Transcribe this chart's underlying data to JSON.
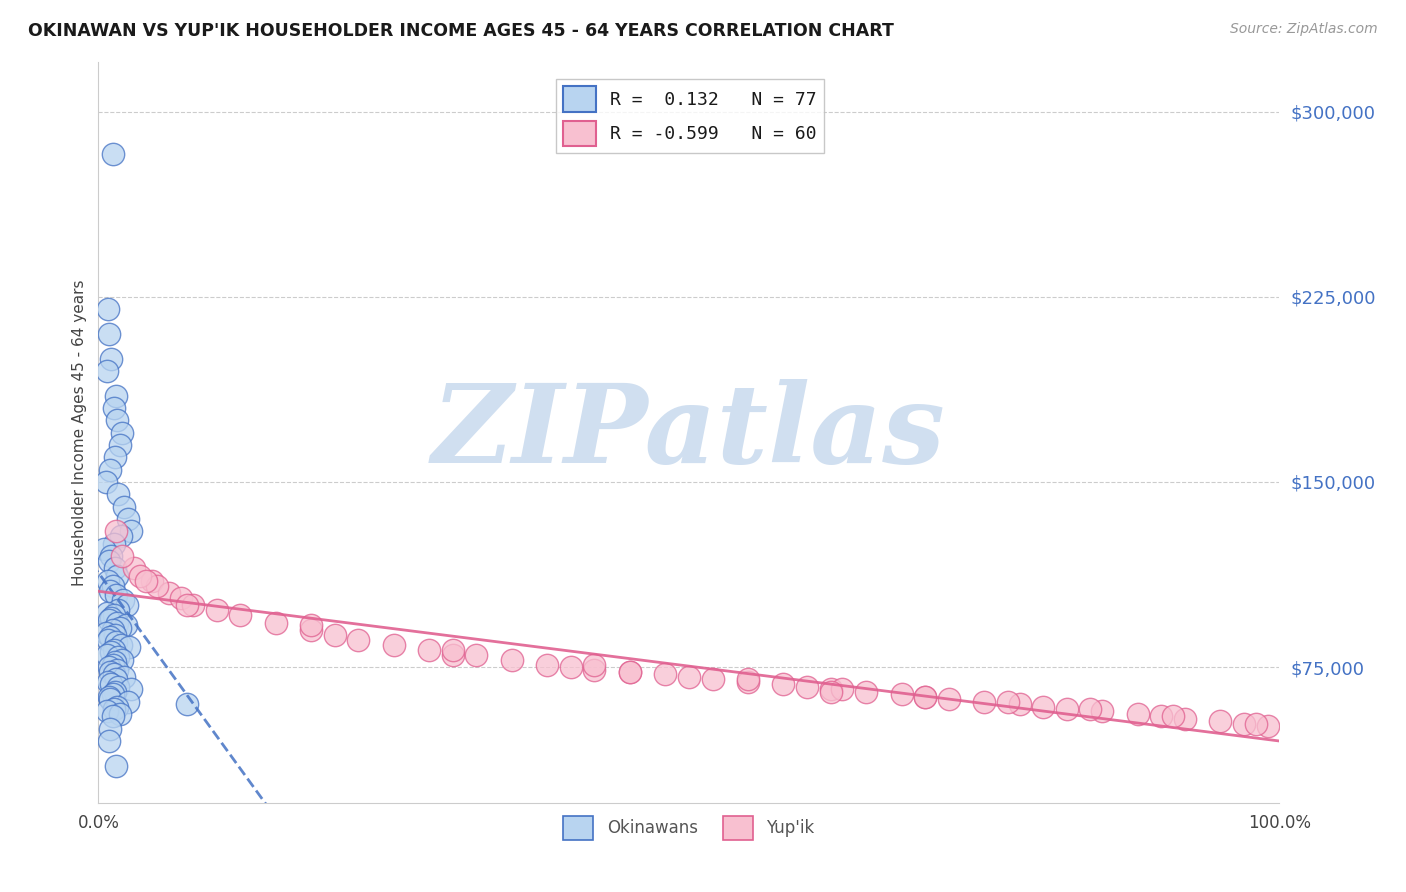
{
  "title": "OKINAWAN VS YUP'IK HOUSEHOLDER INCOME AGES 45 - 64 YEARS CORRELATION CHART",
  "source": "Source: ZipAtlas.com",
  "ylabel": "Householder Income Ages 45 - 64 years",
  "xlim": [
    0.0,
    100.0
  ],
  "ylim": [
    20000,
    320000
  ],
  "ytick_vals": [
    75000,
    150000,
    225000,
    300000
  ],
  "ytick_labels": [
    "$75,000",
    "$150,000",
    "$225,000",
    "$300,000"
  ],
  "xtick_vals": [
    0,
    100
  ],
  "xtick_labels": [
    "0.0%",
    "100.0%"
  ],
  "blue_face": "#b8d4f0",
  "blue_edge": "#4472c4",
  "pink_face": "#f8c0d0",
  "pink_edge": "#e06090",
  "blue_trend_color": "#4472c4",
  "pink_trend_color": "#e06090",
  "legend_label1": "R =  0.132   N = 77",
  "legend_label2": "R = -0.599   N = 60",
  "watermark_text": "ZIPatlas",
  "watermark_color": "#d0dff0",
  "bg": "#ffffff",
  "grid_color": "#cccccc",
  "title_color": "#1a1a1a",
  "source_color": "#999999",
  "ylabel_color": "#444444",
  "ytick_color": "#4472c4",
  "xtick_color": "#444444",
  "blue_x": [
    1.2,
    0.8,
    0.9,
    1.1,
    0.7,
    1.5,
    1.3,
    1.6,
    2.0,
    1.8,
    1.4,
    1.0,
    0.6,
    1.7,
    2.2,
    2.5,
    2.8,
    1.9,
    1.3,
    0.5,
    1.1,
    0.9,
    1.4,
    1.6,
    0.8,
    1.2,
    1.0,
    1.5,
    2.1,
    2.4,
    1.7,
    0.7,
    1.3,
    1.1,
    0.9,
    1.6,
    2.3,
    1.8,
    1.2,
    0.6,
    1.4,
    1.0,
    0.8,
    1.5,
    1.9,
    2.6,
    1.3,
    1.1,
    0.7,
    1.7,
    2.0,
    1.4,
    1.2,
    0.9,
    1.6,
    1.0,
    1.3,
    2.2,
    1.5,
    0.8,
    1.1,
    1.7,
    2.8,
    1.4,
    1.2,
    0.9,
    1.0,
    2.5,
    7.5,
    1.6,
    1.3,
    0.7,
    1.8,
    1.2,
    1.0,
    0.9,
    1.5
  ],
  "blue_y": [
    283000,
    220000,
    210000,
    200000,
    195000,
    185000,
    180000,
    175000,
    170000,
    165000,
    160000,
    155000,
    150000,
    145000,
    140000,
    135000,
    130000,
    128000,
    125000,
    123000,
    120000,
    118000,
    115000,
    112000,
    110000,
    108000,
    106000,
    104000,
    102000,
    100000,
    98000,
    97000,
    96000,
    95000,
    94000,
    93000,
    92000,
    91000,
    90000,
    89000,
    88000,
    87000,
    86000,
    85000,
    84000,
    83000,
    82000,
    81000,
    80000,
    79000,
    78000,
    77000,
    76000,
    75000,
    74000,
    73000,
    72000,
    71000,
    70000,
    69000,
    68000,
    67000,
    66000,
    65000,
    64000,
    63000,
    62000,
    61000,
    60000,
    59000,
    58000,
    57000,
    56000,
    55000,
    50000,
    45000,
    35000
  ],
  "pink_x": [
    1.5,
    3.0,
    4.5,
    6.0,
    2.0,
    5.0,
    7.0,
    3.5,
    8.0,
    4.0,
    10.0,
    12.0,
    15.0,
    18.0,
    20.0,
    7.5,
    22.0,
    25.0,
    30.0,
    28.0,
    35.0,
    32.0,
    38.0,
    40.0,
    42.0,
    45.0,
    48.0,
    50.0,
    52.0,
    55.0,
    58.0,
    60.0,
    62.0,
    65.0,
    68.0,
    70.0,
    72.0,
    75.0,
    78.0,
    80.0,
    82.0,
    85.0,
    88.0,
    90.0,
    92.0,
    95.0,
    97.0,
    99.0,
    42.0,
    55.0,
    63.0,
    70.0,
    77.0,
    84.0,
    91.0,
    98.0,
    18.0,
    30.0,
    45.0,
    62.0
  ],
  "pink_y": [
    130000,
    115000,
    110000,
    105000,
    120000,
    108000,
    103000,
    112000,
    100000,
    110000,
    98000,
    96000,
    93000,
    90000,
    88000,
    100000,
    86000,
    84000,
    80000,
    82000,
    78000,
    80000,
    76000,
    75000,
    74000,
    73000,
    72000,
    71000,
    70000,
    69000,
    68000,
    67000,
    66000,
    65000,
    64000,
    63000,
    62000,
    61000,
    60000,
    59000,
    58000,
    57000,
    56000,
    55000,
    54000,
    53000,
    52000,
    51000,
    76000,
    70000,
    66000,
    63000,
    61000,
    58000,
    55000,
    52000,
    92000,
    82000,
    73000,
    65000
  ]
}
